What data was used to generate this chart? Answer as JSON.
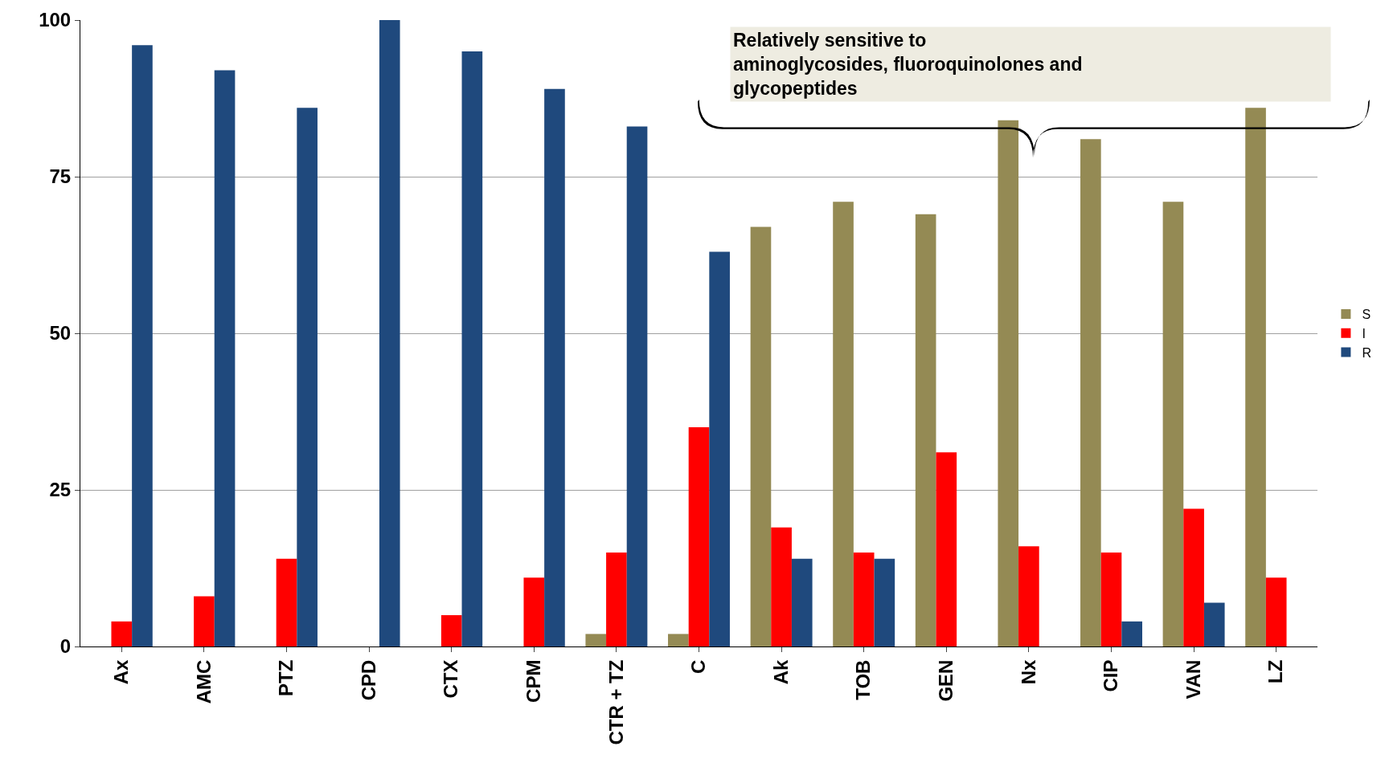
{
  "chart_data": {
    "type": "bar",
    "categories": [
      "Ax",
      "AMC",
      "PTZ",
      "CPD",
      "CTX",
      "CPM",
      "CTR + TZ",
      "C",
      "Ak",
      "TOB",
      "GEN",
      "Nx",
      "CIP",
      "VAN",
      "LZ"
    ],
    "series": [
      {
        "name": "S",
        "color": "#948a54",
        "values": [
          0,
          0,
          0,
          0,
          0,
          0,
          2,
          2,
          67,
          71,
          69,
          84,
          81,
          71,
          86
        ]
      },
      {
        "name": "I",
        "color": "#ff0000",
        "values": [
          4,
          8,
          14,
          0,
          5,
          11,
          15,
          35,
          19,
          15,
          31,
          16,
          15,
          22,
          11
        ]
      },
      {
        "name": "R",
        "color": "#1f497d",
        "values": [
          96,
          92,
          86,
          100,
          95,
          89,
          83,
          63,
          14,
          14,
          0,
          0,
          4,
          7,
          0
        ]
      }
    ],
    "ylim": [
      0,
      100
    ],
    "yticks": [
      0,
      25,
      50,
      75,
      100
    ],
    "grid": "y",
    "legend": "right",
    "annotations": [
      "Relatively sensitive to\naminoglycosides, fluoroquinolones and\nglycopeptides"
    ]
  }
}
